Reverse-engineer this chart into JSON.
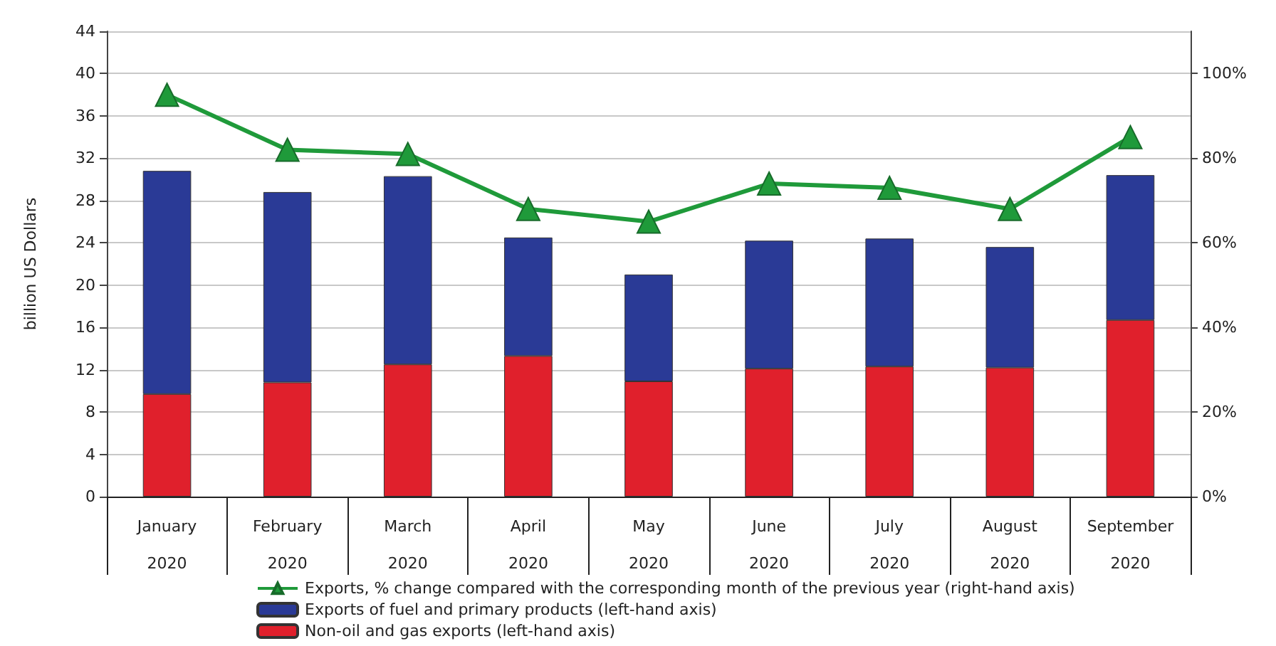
{
  "chart_data": {
    "type": "bar",
    "stacked": true,
    "ylabel": "billion US Dollars",
    "categories": [
      "January\n2020",
      "February\n2020",
      "March\n2020",
      "April\n2020",
      "May\n2020",
      "June\n2020",
      "July\n2020",
      "August\n2020",
      "September\n2020"
    ],
    "series": [
      {
        "name": "Non-oil and gas exports (left-hand axis)",
        "color": "#e0202c",
        "values": [
          9.7,
          10.8,
          12.5,
          13.3,
          10.9,
          12.1,
          12.3,
          12.2,
          16.7
        ]
      },
      {
        "name": "Exports of fuel and primary products (left-hand axis)",
        "color": "#2a3a96",
        "values": [
          21.1,
          18.0,
          17.8,
          11.2,
          10.1,
          12.1,
          12.1,
          11.4,
          13.7
        ]
      },
      {
        "name": "Exports, % change compared with the corresponding month of the previous year (right-hand axis)",
        "type": "line",
        "axis": "y2",
        "color": "#1f9a3a",
        "marker": "triangle",
        "values": [
          95,
          82,
          81,
          68,
          65,
          74,
          73,
          68,
          85
        ]
      }
    ],
    "ylim": [
      0,
      44
    ],
    "yticks": [
      0,
      4,
      8,
      12,
      16,
      20,
      24,
      28,
      32,
      36,
      40,
      44
    ],
    "y2lim": [
      0,
      110
    ],
    "y2ticks": [
      {
        "value": 0,
        "label": "0%"
      },
      {
        "value": 20,
        "label": "20%"
      },
      {
        "value": 40,
        "label": "40%"
      },
      {
        "value": 60,
        "label": "60%"
      },
      {
        "value": 80,
        "label": "80%"
      },
      {
        "value": 100,
        "label": "100%"
      }
    ],
    "grid": "y",
    "legend": "bottom"
  }
}
